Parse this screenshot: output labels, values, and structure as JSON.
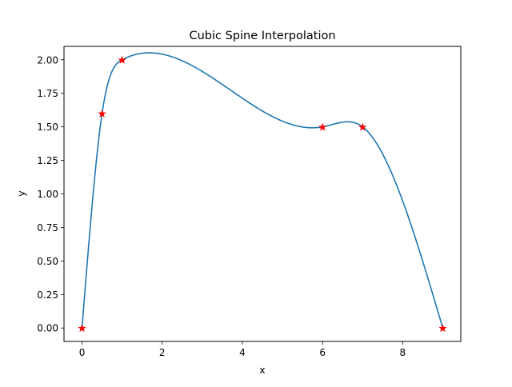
{
  "chart_data": {
    "type": "line",
    "title": "Cubic Spine Interpolation",
    "xlabel": "x",
    "ylabel": "y",
    "xlim": [
      -0.45,
      9.45
    ],
    "ylim": [
      -0.1,
      2.1
    ],
    "xticks": [
      0,
      2,
      4,
      6,
      8
    ],
    "xtick_labels": [
      "0",
      "2",
      "4",
      "6",
      "8"
    ],
    "yticks": [
      0.0,
      0.25,
      0.5,
      0.75,
      1.0,
      1.25,
      1.5,
      1.75,
      2.0
    ],
    "ytick_labels": [
      "0.00",
      "0.25",
      "0.50",
      "0.75",
      "1.00",
      "1.25",
      "1.50",
      "1.75",
      "2.00"
    ],
    "grid": false,
    "series": [
      {
        "kind": "spline",
        "color": "#1f77b4",
        "x": [
          0,
          0.5,
          1,
          6,
          7,
          9
        ],
        "y": [
          0,
          1.6,
          2.0,
          1.5,
          1.5,
          0
        ]
      },
      {
        "kind": "markers",
        "marker": "star",
        "color": "#ff0000",
        "x": [
          0,
          0.5,
          1,
          6,
          7,
          9
        ],
        "y": [
          0,
          1.6,
          2.0,
          1.5,
          1.5,
          0
        ]
      }
    ]
  }
}
